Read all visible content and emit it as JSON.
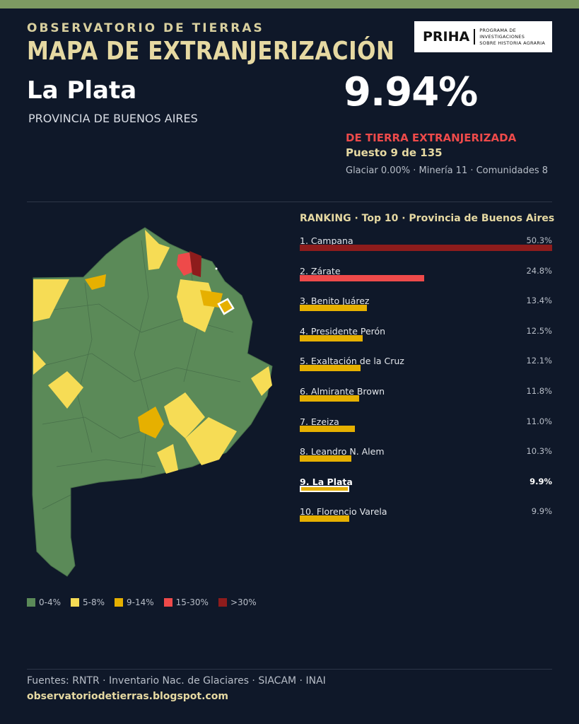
{
  "header": {
    "kicker": "OBSERVATORIO DE TIERRAS",
    "title": "MAPA DE EXTRANJERIZACIÓN",
    "logo": "PRIHA",
    "logo_lines": [
      "PROGRAMA DE INVESTIGACIONES",
      "SOBRE HISTORIA AGRARIA"
    ]
  },
  "place": {
    "name": "La Plata",
    "province": "PROVINCIA DE BUENOS AIRES"
  },
  "stat": {
    "value": "9.94%",
    "label": "DE TIERRA EXTRANJERIZADA",
    "rank": "Puesto 9 de 135",
    "details": "Glaciar 0.00% · Minería 11 · Comunidades 8"
  },
  "ranking": {
    "title": "RANKING · Top 10 · Provincia de Buenos Aires",
    "labels": [
      "1. Campana",
      "2. Zárate",
      "3. Benito Juárez",
      "4. Presidente Perón",
      "5. Exaltación de la Cruz",
      "6. Almirante Brown",
      "7. Ezeiza",
      "8. Leandro N. Alem",
      "9. La Plata",
      "10. Florencio Varela"
    ],
    "values": [
      50.3,
      24.8,
      13.4,
      12.5,
      12.1,
      11.8,
      11.0,
      10.3,
      9.9,
      9.9
    ],
    "value_labels": [
      "50.3%",
      "24.8%",
      "13.4%",
      "12.5%",
      "12.1%",
      "11.8%",
      "11.0%",
      "10.3%",
      "9.9%",
      "9.9%"
    ],
    "colors": [
      "#8e1c1c",
      "#ee4a4a",
      "#e6b000",
      "#e6b000",
      "#e6b000",
      "#e6b000",
      "#e6b000",
      "#e6b000",
      "#e6b000",
      "#e6b000"
    ],
    "highlight": 8
  },
  "legend": [
    {
      "label": "0-4%",
      "color": "#5b8a58"
    },
    {
      "label": "5-8%",
      "color": "#f6dc55"
    },
    {
      "label": "9-14%",
      "color": "#e6b000"
    },
    {
      "label": "15-30%",
      "color": "#ee4a4a"
    },
    {
      "label": ">30%",
      "color": "#8e1c1c"
    }
  ],
  "footer": {
    "sources": "Fuentes: RNTR · Inventario Nac. de Glaciares · SIACAM · INAI",
    "url": "observatoriodetierras.blogspot.com"
  }
}
